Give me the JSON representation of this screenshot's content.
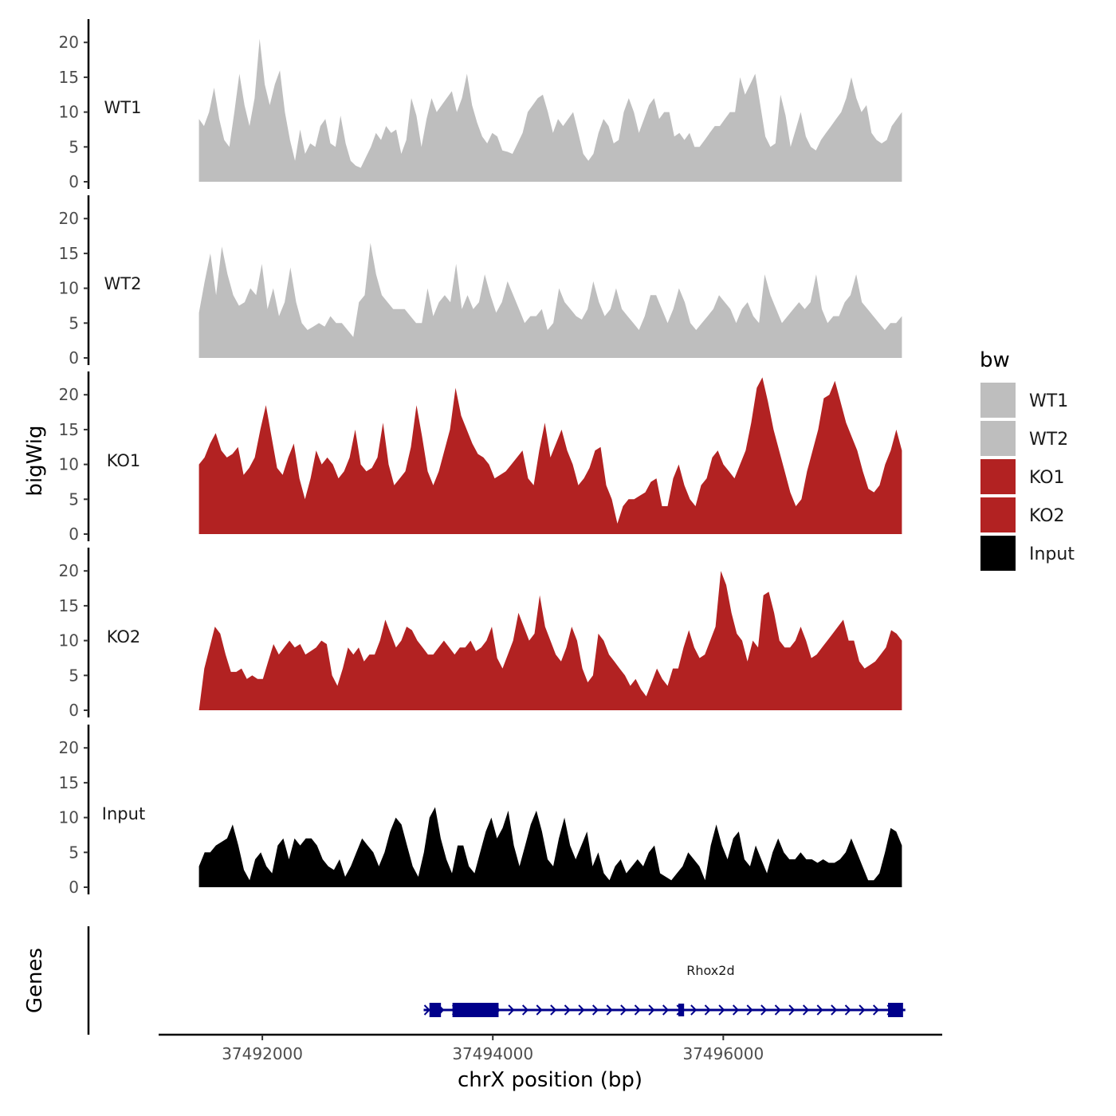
{
  "chart_data": {
    "type": "area",
    "title": "",
    "ylabel": "bigWig",
    "xlabel": "chrX position (bp)",
    "genes_label": "Genes",
    "xlim": [
      37491100,
      37497900
    ],
    "ylim": [
      0,
      23
    ],
    "x_ticks": [
      37492000,
      37494000,
      37496000
    ],
    "x_tick_labels": [
      "37492000",
      "37494000",
      "37496000"
    ],
    "y_ticks": [
      0,
      5,
      10,
      15,
      20
    ],
    "y_tick_labels": [
      "0",
      "5",
      "10",
      "15",
      "20"
    ],
    "x_start": 37491450,
    "x_end": 37497550,
    "legend": {
      "title": "bw",
      "entries": [
        {
          "label": "WT1",
          "color": "#bebebe"
        },
        {
          "label": "WT2",
          "color": "#bebebe"
        },
        {
          "label": "KO1",
          "color": "#b22222"
        },
        {
          "label": "KO2",
          "color": "#b22222"
        },
        {
          "label": "Input",
          "color": "#000000"
        }
      ]
    },
    "series": [
      {
        "name": "WT1",
        "color": "#bebebe",
        "values": [
          9,
          8,
          10,
          13.5,
          9,
          6,
          5,
          10,
          15.5,
          11,
          8,
          12,
          20.5,
          14,
          11,
          14,
          16,
          10,
          6,
          3,
          7.5,
          4,
          5.5,
          5,
          8,
          9,
          5.5,
          5,
          9.5,
          5.5,
          3,
          2.3,
          2,
          3.5,
          5,
          7,
          6,
          8,
          7,
          7.5,
          4,
          6,
          12,
          9.5,
          5,
          9,
          12,
          10,
          11,
          12,
          13,
          10,
          12,
          15.5,
          11,
          8.5,
          6.5,
          5.5,
          7,
          6.5,
          4.5,
          4.3,
          4,
          5.5,
          7,
          10,
          11,
          12,
          12.5,
          10,
          7,
          9,
          8,
          9,
          10,
          7,
          4,
          3,
          4,
          7,
          9,
          8,
          5.5,
          6,
          10,
          12,
          10,
          7,
          9,
          11,
          12,
          9,
          10,
          10,
          6.5,
          7,
          6,
          7,
          5,
          5,
          6,
          7,
          8,
          8,
          9,
          10,
          10,
          15,
          12.5,
          14,
          15.5,
          11,
          6.5,
          5,
          5.5,
          12.5,
          9.5,
          5,
          7.5,
          10,
          6.5,
          5,
          4.5,
          6,
          7,
          8,
          9,
          10,
          12,
          15,
          12,
          10,
          11,
          7,
          6,
          5.5,
          6,
          8,
          9,
          10
        ]
      },
      {
        "name": "WT2",
        "color": "#bebebe",
        "values": [
          6.5,
          11,
          15,
          9,
          16,
          12,
          9,
          7.5,
          8,
          10,
          9,
          13.5,
          7,
          10,
          6,
          8,
          13,
          8,
          5,
          4,
          4.5,
          5,
          4.5,
          6,
          5,
          5,
          4,
          3,
          8,
          9,
          16.5,
          12,
          9,
          8,
          7,
          7,
          7,
          6,
          5,
          5,
          10,
          6,
          8,
          9,
          8,
          13.5,
          7,
          9,
          7,
          8,
          12,
          9,
          6.5,
          8,
          11,
          9,
          7,
          5,
          6,
          6,
          7,
          4,
          5,
          10,
          8,
          7,
          6,
          5.5,
          7,
          11,
          8,
          6,
          7,
          10,
          7,
          6,
          5,
          4,
          6,
          9,
          9,
          7,
          5,
          7,
          10,
          8,
          5,
          4,
          5,
          6,
          7,
          9,
          8,
          7,
          5,
          7,
          8,
          6,
          5,
          12,
          9,
          7,
          5,
          6,
          7,
          8,
          7,
          8,
          12,
          7,
          5,
          6,
          6,
          8,
          9,
          12,
          8,
          7,
          6,
          5,
          4,
          5,
          5,
          6
        ]
      },
      {
        "name": "KO1",
        "color": "#b22222",
        "values": [
          10,
          11,
          13,
          14.5,
          12,
          11,
          11.5,
          12.5,
          8.5,
          9.5,
          11,
          15,
          18.5,
          14,
          9.5,
          8.5,
          11,
          13,
          8,
          5,
          8,
          12,
          10,
          11,
          10,
          8,
          9,
          11,
          15,
          10,
          9,
          9.5,
          11,
          16,
          10,
          7,
          8,
          9,
          12.5,
          18.5,
          14,
          9,
          7,
          9,
          12,
          15,
          21,
          17,
          15,
          13,
          11.5,
          11,
          10,
          8,
          8.5,
          9,
          10,
          11,
          12,
          8,
          7,
          12,
          16,
          11,
          13,
          15,
          12,
          10,
          7,
          8,
          9.5,
          12,
          12.5,
          7,
          5,
          1.5,
          4,
          5,
          5,
          5.5,
          6,
          7.5,
          8,
          4,
          4,
          8,
          10,
          7,
          5,
          4,
          7,
          8,
          11,
          12,
          10,
          9,
          8,
          10,
          12,
          16,
          21,
          22.5,
          19,
          15,
          12,
          9,
          6,
          4,
          5,
          9,
          12,
          15,
          19.5,
          20,
          22,
          19,
          16,
          14,
          12,
          9,
          6.5,
          6,
          7,
          10,
          12,
          15,
          12
        ]
      },
      {
        "name": "KO2",
        "color": "#b22222",
        "values": [
          0,
          6,
          9,
          12,
          11,
          8,
          5.5,
          5.5,
          6,
          4.5,
          5,
          4.5,
          4.5,
          7,
          9.5,
          8,
          9,
          10,
          9,
          9.5,
          8,
          8.5,
          9,
          10,
          9.5,
          5,
          3.5,
          6,
          9,
          8,
          9,
          7,
          8,
          8,
          10,
          13,
          11,
          9,
          10,
          12,
          11.5,
          10,
          9,
          8,
          8,
          9,
          10,
          9,
          8,
          9,
          9,
          10,
          8.5,
          9,
          10,
          12,
          7.5,
          6,
          8,
          10,
          14,
          12,
          10,
          11,
          16.5,
          12,
          10,
          8,
          7,
          9,
          12,
          10,
          6,
          4,
          5,
          11,
          10,
          8,
          7,
          6,
          5,
          3.5,
          4.5,
          3,
          2,
          4,
          6,
          4.5,
          3.5,
          6,
          6,
          9,
          11.5,
          9,
          7.5,
          8,
          10,
          12,
          20,
          18,
          14,
          11,
          10,
          7,
          10,
          9,
          16.5,
          17,
          14,
          10,
          9,
          9,
          10,
          12,
          10,
          7.5,
          8,
          9,
          10,
          11,
          12,
          13,
          10,
          10,
          7,
          6,
          6.5,
          7,
          8,
          9,
          11.5,
          11,
          10
        ]
      },
      {
        "name": "Input",
        "color": "#000000",
        "values": [
          3,
          5,
          5,
          6,
          6.5,
          7,
          9,
          6,
          2.5,
          1,
          4,
          5,
          3,
          2,
          6,
          7,
          4,
          7,
          6,
          7,
          7,
          6,
          4,
          3,
          2.5,
          4,
          1.5,
          3,
          5,
          7,
          6,
          5,
          3,
          5,
          8,
          10,
          9,
          6,
          3,
          1.5,
          5,
          10,
          11.5,
          7,
          4,
          2,
          6,
          6,
          3,
          2,
          5,
          8,
          10,
          7,
          8.5,
          11,
          6,
          3,
          6,
          9,
          11,
          8,
          4,
          3,
          7,
          10,
          6,
          4,
          6,
          8,
          3,
          5,
          2,
          1,
          3,
          4,
          2,
          3,
          4,
          3,
          5,
          6,
          2,
          1.5,
          1,
          2,
          3,
          5,
          4,
          3,
          1,
          6,
          9,
          6,
          4,
          7,
          8,
          4,
          3,
          6,
          4,
          2,
          5,
          7,
          5,
          4,
          4,
          5,
          4,
          4,
          3.5,
          4,
          3.5,
          3.5,
          4,
          5,
          7,
          5,
          3,
          1,
          1,
          2,
          5,
          8.5,
          8,
          6
        ]
      }
    ],
    "gene": {
      "name": "Rhox2d",
      "strand": "+",
      "start": 37493400,
      "end": 37497580,
      "exons": [
        [
          37493450,
          37493550
        ],
        [
          37493650,
          37494050
        ],
        [
          37495610,
          37495660
        ],
        [
          37497430,
          37497560
        ]
      ]
    }
  }
}
